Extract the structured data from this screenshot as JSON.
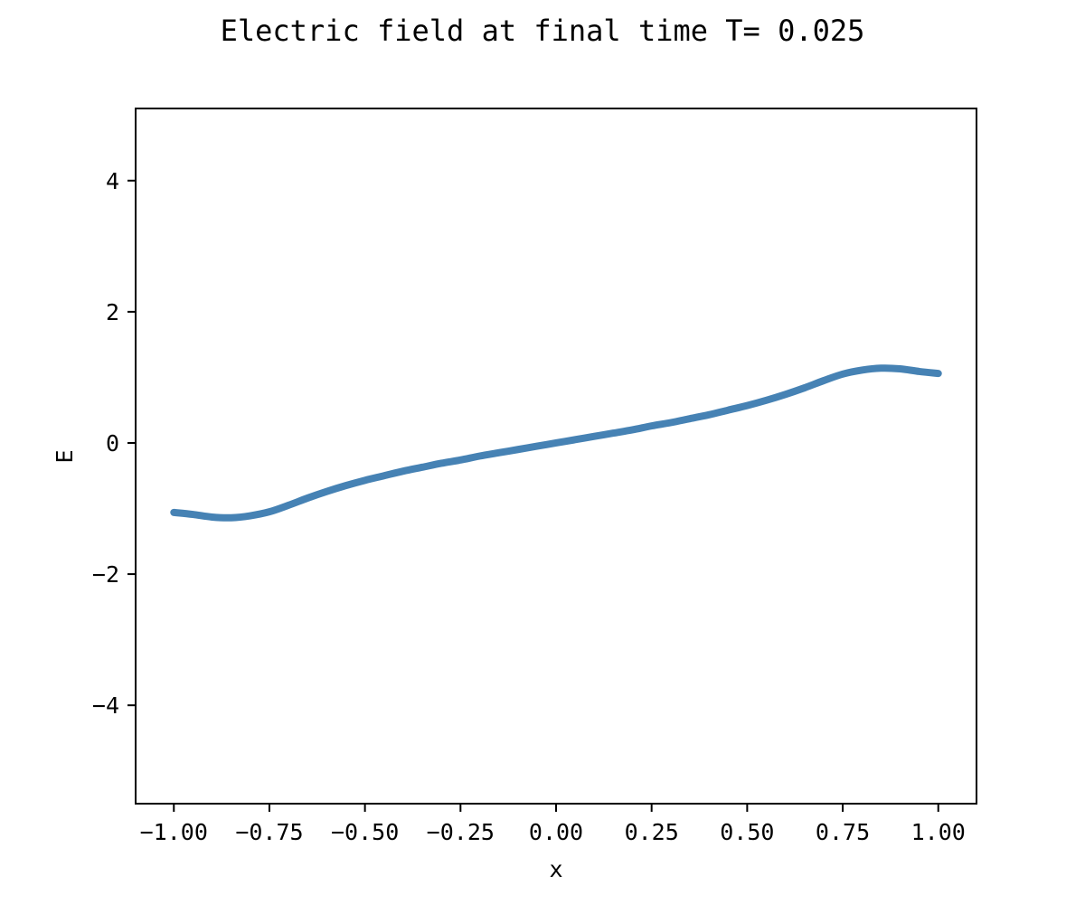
{
  "chart_data": {
    "type": "line",
    "title": "Electric field at final time T= 0.025",
    "xlabel": "x",
    "ylabel": "E",
    "xlim": [
      -1.1,
      1.1
    ],
    "ylim": [
      -5.5,
      5.1
    ],
    "x_ticks": [
      -1.0,
      -0.75,
      -0.5,
      -0.25,
      0.0,
      0.25,
      0.5,
      0.75,
      1.0
    ],
    "x_tick_labels": [
      "−1.00",
      "−0.75",
      "−0.50",
      "−0.25",
      "0.00",
      "0.25",
      "0.50",
      "0.75",
      "1.00"
    ],
    "y_ticks": [
      -4,
      -2,
      0,
      2,
      4
    ],
    "y_tick_labels": [
      "−4",
      "−2",
      "0",
      "2",
      "4"
    ],
    "grid": false,
    "legend": "none",
    "series_color": "#4682b4",
    "series": [
      {
        "x": [
          -1.0,
          -0.95,
          -0.9,
          -0.85,
          -0.8,
          -0.75,
          -0.7,
          -0.65,
          -0.6,
          -0.55,
          -0.5,
          -0.45,
          -0.4,
          -0.35,
          -0.3,
          -0.25,
          -0.2,
          -0.15,
          -0.1,
          -0.05,
          0.0,
          0.05,
          0.1,
          0.15,
          0.2,
          0.25,
          0.3,
          0.35,
          0.4,
          0.45,
          0.5,
          0.55,
          0.6,
          0.65,
          0.7,
          0.75,
          0.8,
          0.85,
          0.9,
          0.95,
          1.0
        ],
        "y": [
          -1.06,
          -1.09,
          -1.13,
          -1.14,
          -1.11,
          -1.05,
          -0.95,
          -0.84,
          -0.74,
          -0.65,
          -0.57,
          -0.5,
          -0.43,
          -0.37,
          -0.31,
          -0.26,
          -0.2,
          -0.15,
          -0.1,
          -0.05,
          0.0,
          0.05,
          0.1,
          0.15,
          0.2,
          0.26,
          0.31,
          0.37,
          0.43,
          0.5,
          0.57,
          0.65,
          0.74,
          0.84,
          0.95,
          1.05,
          1.11,
          1.14,
          1.13,
          1.09,
          1.06
        ]
      }
    ]
  }
}
